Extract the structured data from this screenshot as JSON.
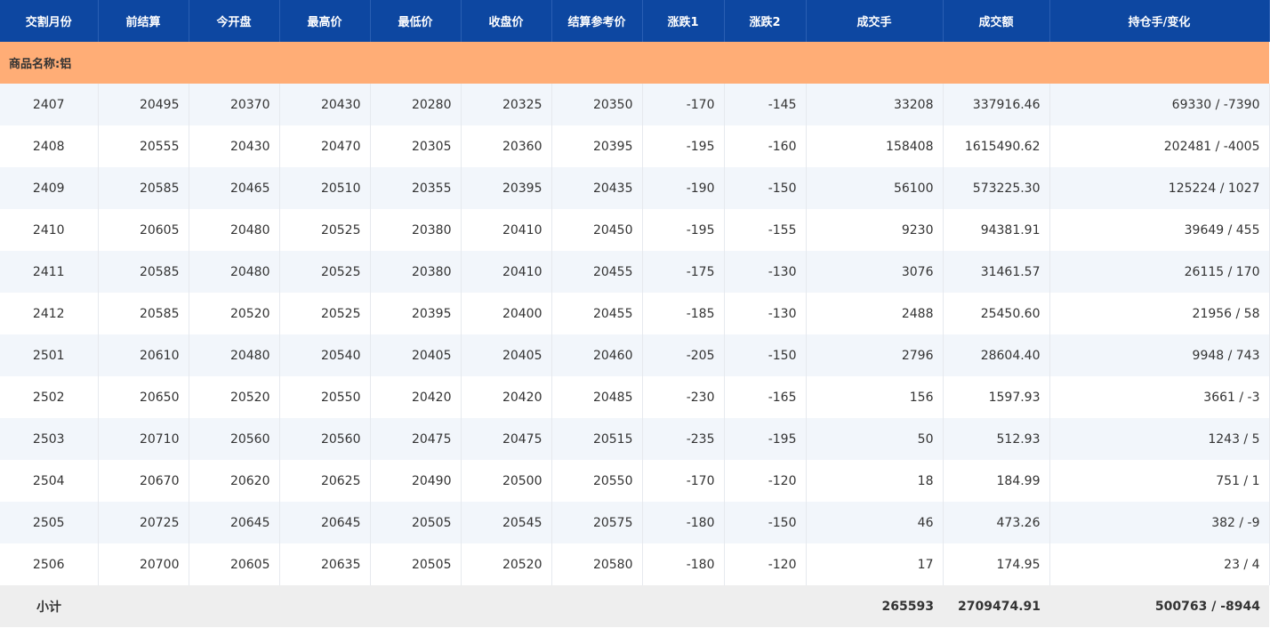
{
  "table": {
    "header": [
      "交割月份",
      "前结算",
      "今开盘",
      "最高价",
      "最低价",
      "收盘价",
      "结算参考价",
      "涨跌1",
      "涨跌2",
      "成交手",
      "成交额",
      "持仓手/变化"
    ],
    "section": "商品名称:铝",
    "rows": [
      [
        "2407",
        "20495",
        "20370",
        "20430",
        "20280",
        "20325",
        "20350",
        "-170",
        "-145",
        "33208",
        "337916.46",
        "69330 / -7390"
      ],
      [
        "2408",
        "20555",
        "20430",
        "20470",
        "20305",
        "20360",
        "20395",
        "-195",
        "-160",
        "158408",
        "1615490.62",
        "202481 / -4005"
      ],
      [
        "2409",
        "20585",
        "20465",
        "20510",
        "20355",
        "20395",
        "20435",
        "-190",
        "-150",
        "56100",
        "573225.30",
        "125224 / 1027"
      ],
      [
        "2410",
        "20605",
        "20480",
        "20525",
        "20380",
        "20410",
        "20450",
        "-195",
        "-155",
        "9230",
        "94381.91",
        "39649 / 455"
      ],
      [
        "2411",
        "20585",
        "20480",
        "20525",
        "20380",
        "20410",
        "20455",
        "-175",
        "-130",
        "3076",
        "31461.57",
        "26115 / 170"
      ],
      [
        "2412",
        "20585",
        "20520",
        "20525",
        "20395",
        "20400",
        "20455",
        "-185",
        "-130",
        "2488",
        "25450.60",
        "21956 / 58"
      ],
      [
        "2501",
        "20610",
        "20480",
        "20540",
        "20405",
        "20405",
        "20460",
        "-205",
        "-150",
        "2796",
        "28604.40",
        "9948 / 743"
      ],
      [
        "2502",
        "20650",
        "20520",
        "20550",
        "20420",
        "20420",
        "20485",
        "-230",
        "-165",
        "156",
        "1597.93",
        "3661 / -3"
      ],
      [
        "2503",
        "20710",
        "20560",
        "20560",
        "20475",
        "20475",
        "20515",
        "-235",
        "-195",
        "50",
        "512.93",
        "1243 / 5"
      ],
      [
        "2504",
        "20670",
        "20620",
        "20625",
        "20490",
        "20500",
        "20550",
        "-170",
        "-120",
        "18",
        "184.99",
        "751 / 1"
      ],
      [
        "2505",
        "20725",
        "20645",
        "20645",
        "20505",
        "20545",
        "20575",
        "-180",
        "-150",
        "46",
        "473.26",
        "382 / -9"
      ],
      [
        "2506",
        "20700",
        "20605",
        "20635",
        "20505",
        "20520",
        "20580",
        "-180",
        "-120",
        "17",
        "174.95",
        "23 / 4"
      ]
    ],
    "subtotal": {
      "label": "小计",
      "volume": "265593",
      "turnover": "2709474.91",
      "open_interest": "500763 / -8944"
    }
  }
}
